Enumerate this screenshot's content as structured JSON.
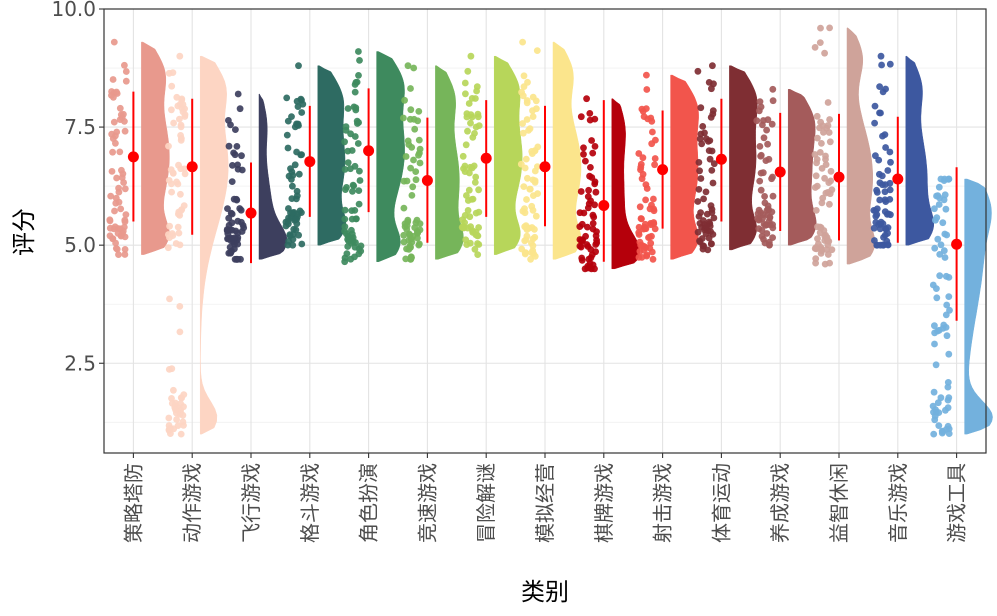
{
  "chart_data": {
    "type": "raincloud",
    "xlabel": "类别",
    "ylabel": "评分",
    "ylim": [
      0.6,
      10.0
    ],
    "yticks": [
      2.5,
      5.0,
      7.5,
      10.0
    ],
    "ytick_labels": [
      "2.5",
      "5.0",
      "7.5",
      "10.0"
    ],
    "grid": true,
    "legend": "none",
    "summary_color": "#ff0000",
    "categories": [
      {
        "label": "策略塔防",
        "color": "#e8998d",
        "min": 4.8,
        "max": 9.3,
        "mean": 6.87,
        "sd_low": 5.5,
        "sd_high": 8.25
      },
      {
        "label": "动作游戏",
        "color": "#fdd5c3",
        "min": 1.0,
        "max": 9.0,
        "mean": 6.66,
        "sd_low": 5.22,
        "sd_high": 8.1
      },
      {
        "label": "飞行游戏",
        "color": "#3d3f5e",
        "min": 4.7,
        "max": 8.2,
        "mean": 5.68,
        "sd_low": 4.62,
        "sd_high": 6.75
      },
      {
        "label": "格斗游戏",
        "color": "#2e6b62",
        "min": 5.0,
        "max": 8.8,
        "mean": 6.77,
        "sd_low": 5.6,
        "sd_high": 7.95
      },
      {
        "label": "角色扮演",
        "color": "#3e8a5e",
        "min": 4.65,
        "max": 9.1,
        "mean": 7.0,
        "sd_low": 5.7,
        "sd_high": 8.32
      },
      {
        "label": "竞速游戏",
        "color": "#76b55a",
        "min": 4.7,
        "max": 8.8,
        "mean": 6.37,
        "sd_low": 5.05,
        "sd_high": 7.7
      },
      {
        "label": "冒险解谜",
        "color": "#b7d65a",
        "min": 4.8,
        "max": 9.0,
        "mean": 6.84,
        "sd_low": 5.6,
        "sd_high": 8.07
      },
      {
        "label": "模拟经营",
        "color": "#fbe58c",
        "min": 4.7,
        "max": 9.3,
        "mean": 6.66,
        "sd_low": 5.4,
        "sd_high": 7.95
      },
      {
        "label": "棋牌游戏",
        "color": "#b5000b",
        "min": 4.5,
        "max": 8.1,
        "mean": 5.84,
        "sd_low": 4.65,
        "sd_high": 8.07
      },
      {
        "label": "射击游戏",
        "color": "#f2554c",
        "min": 4.7,
        "max": 8.6,
        "mean": 6.6,
        "sd_low": 5.35,
        "sd_high": 7.85
      },
      {
        "label": "体育运动",
        "color": "#7f2e33",
        "min": 4.9,
        "max": 8.8,
        "mean": 6.82,
        "sd_low": 5.5,
        "sd_high": 8.1
      },
      {
        "label": "养成游戏",
        "color": "#a45b5b",
        "min": 5.0,
        "max": 8.3,
        "mean": 6.55,
        "sd_low": 5.3,
        "sd_high": 7.8
      },
      {
        "label": "益智休闲",
        "color": "#cfa39a",
        "min": 4.6,
        "max": 9.6,
        "mean": 6.44,
        "sd_low": 5.1,
        "sd_high": 7.78
      },
      {
        "label": "音乐游戏",
        "color": "#3d58a0",
        "min": 5.0,
        "max": 9.0,
        "mean": 6.4,
        "sd_low": 5.05,
        "sd_high": 7.72
      },
      {
        "label": "游戏工具",
        "color": "#73b1dd",
        "min": 1.0,
        "max": 6.4,
        "mean": 5.02,
        "sd_low": 3.4,
        "sd_high": 6.65
      }
    ]
  }
}
